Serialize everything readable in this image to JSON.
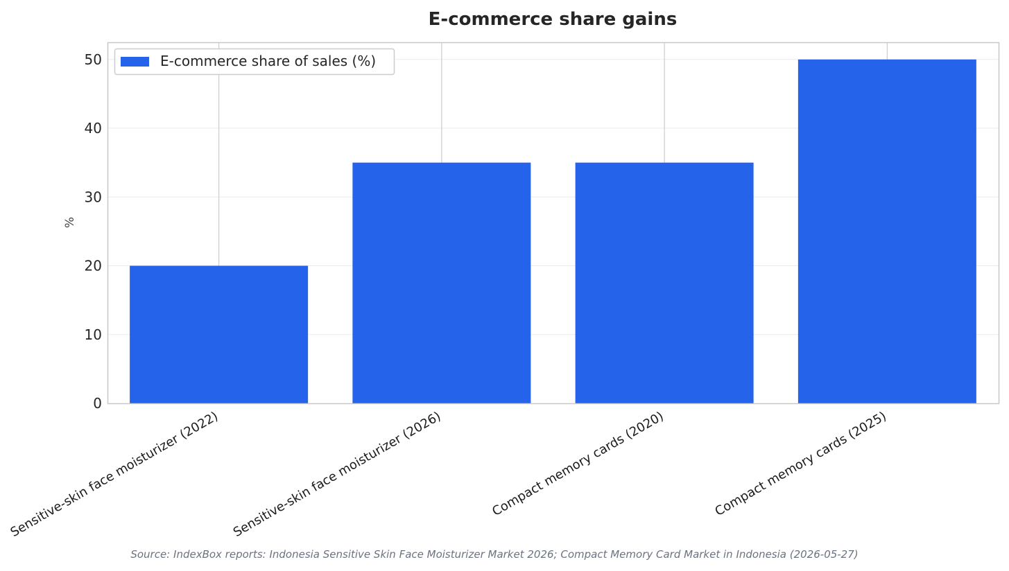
{
  "chart_data": {
    "type": "bar",
    "title": "E-commerce share gains",
    "xlabel": "",
    "ylabel": "%",
    "categories": [
      "Sensitive-skin face moisturizer (2022)",
      "Sensitive-skin face moisturizer (2026)",
      "Compact memory cards (2020)",
      "Compact memory cards (2025)"
    ],
    "series": [
      {
        "name": "E-commerce share of sales (%)",
        "values": [
          20,
          35,
          35,
          50
        ],
        "color": "#2563eb"
      }
    ],
    "ylim": [
      0,
      52.5
    ],
    "yticks": [
      "0",
      "10",
      "20",
      "30",
      "40",
      "50"
    ],
    "grid": true,
    "legend_position": "top-left",
    "source": "Source: IndexBox reports: Indonesia Sensitive Skin Face Moisturizer Market 2026; Compact Memory Card Market in Indonesia (2026-05-27)"
  }
}
